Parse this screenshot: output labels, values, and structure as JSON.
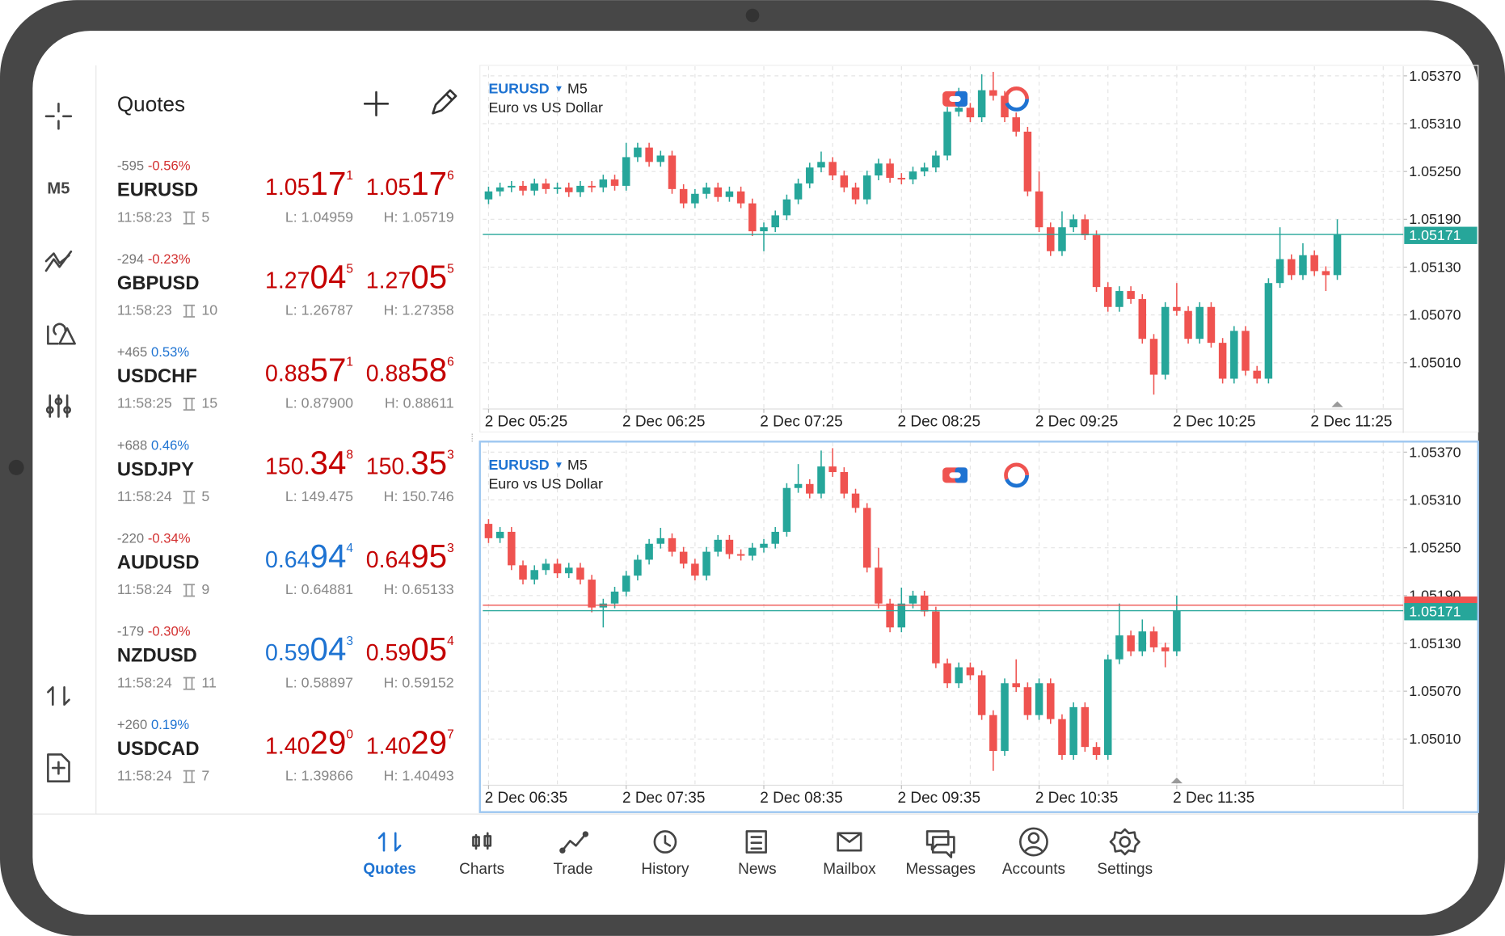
{
  "sidebar": {
    "timeframe": "M5"
  },
  "quotes": {
    "title": "Quotes",
    "items": [
      {
        "change": "-595",
        "pct": "-0.56%",
        "pct_color": "#d32f2f",
        "symbol": "EURUSD",
        "time": "11:58:23",
        "spread": "5",
        "bid": [
          "1.05",
          "17",
          "1"
        ],
        "bid_color": "#c40000",
        "ask": [
          "1.05",
          "17",
          "6"
        ],
        "ask_color": "#c40000",
        "low": "L: 1.04959",
        "high": "H: 1.05719"
      },
      {
        "change": "-294",
        "pct": "-0.23%",
        "pct_color": "#d32f2f",
        "symbol": "GBPUSD",
        "time": "11:58:23",
        "spread": "10",
        "bid": [
          "1.27",
          "04",
          "5"
        ],
        "bid_color": "#c40000",
        "ask": [
          "1.27",
          "05",
          "5"
        ],
        "ask_color": "#c40000",
        "low": "L: 1.26787",
        "high": "H: 1.27358"
      },
      {
        "change": "+465",
        "pct": "0.53%",
        "pct_color": "#1e73d2",
        "symbol": "USDCHF",
        "time": "11:58:25",
        "spread": "15",
        "bid": [
          "0.88",
          "57",
          "1"
        ],
        "bid_color": "#c40000",
        "ask": [
          "0.88",
          "58",
          "6"
        ],
        "ask_color": "#c40000",
        "low": "L: 0.87900",
        "high": "H: 0.88611"
      },
      {
        "change": "+688",
        "pct": "0.46%",
        "pct_color": "#1e73d2",
        "symbol": "USDJPY",
        "time": "11:58:24",
        "spread": "5",
        "bid": [
          "150.",
          "34",
          "8"
        ],
        "bid_color": "#c40000",
        "ask": [
          "150.",
          "35",
          "3"
        ],
        "ask_color": "#c40000",
        "low": "L: 149.475",
        "high": "H: 150.746"
      },
      {
        "change": "-220",
        "pct": "-0.34%",
        "pct_color": "#d32f2f",
        "symbol": "AUDUSD",
        "time": "11:58:24",
        "spread": "9",
        "bid": [
          "0.64",
          "94",
          "4"
        ],
        "bid_color": "#1e73d2",
        "ask": [
          "0.64",
          "95",
          "3"
        ],
        "ask_color": "#c40000",
        "low": "L: 0.64881",
        "high": "H: 0.65133"
      },
      {
        "change": "-179",
        "pct": "-0.30%",
        "pct_color": "#d32f2f",
        "symbol": "NZDUSD",
        "time": "11:58:24",
        "spread": "11",
        "bid": [
          "0.59",
          "04",
          "3"
        ],
        "bid_color": "#1e73d2",
        "ask": [
          "0.59",
          "05",
          "4"
        ],
        "ask_color": "#c40000",
        "low": "L: 0.58897",
        "high": "H: 0.59152"
      },
      {
        "change": "+260",
        "pct": "0.19%",
        "pct_color": "#1e73d2",
        "symbol": "USDCAD",
        "time": "11:58:24",
        "spread": "7",
        "bid": [
          "1.40",
          "29",
          "0"
        ],
        "bid_color": "#c40000",
        "ask": [
          "1.40",
          "29",
          "7"
        ],
        "ask_color": "#c40000",
        "low": "L: 1.39866",
        "high": "H: 1.40493"
      }
    ]
  },
  "chart_data": [
    {
      "type": "candlestick",
      "symbol": "EURUSD",
      "timeframe": "M5",
      "title": "Euro vs US Dollar",
      "x_labels": [
        "2 Dec 05:25",
        "2 Dec 06:25",
        "2 Dec 07:25",
        "2 Dec 08:25",
        "2 Dec 09:25",
        "2 Dec 10:25",
        "2 Dec 11:25"
      ],
      "ylim": [
        1.04952,
        1.05382
      ],
      "yticks": [
        {
          "value": 1.0537,
          "label": "1.05370"
        },
        {
          "value": 1.0531,
          "label": "1.05310"
        },
        {
          "value": 1.0525,
          "label": "1.05250"
        },
        {
          "value": 1.0519,
          "label": "1.05190"
        },
        {
          "value": 1.0513,
          "label": "1.05130"
        },
        {
          "value": 1.0507,
          "label": "1.05070"
        },
        {
          "value": 1.0501,
          "label": "1.05010"
        }
      ],
      "grid": true,
      "up_color": "#26a69a",
      "down_color": "#ef5350",
      "price_line": 1.05171,
      "price_color": "#26a69a",
      "active": false,
      "candles": [
        [
          1.05215,
          1.05231,
          1.05209,
          1.05225
        ],
        [
          1.05225,
          1.05236,
          1.05219,
          1.0523
        ],
        [
          1.0523,
          1.05238,
          1.05224,
          1.05232
        ],
        [
          1.05232,
          1.05238,
          1.0522,
          1.05226
        ],
        [
          1.05226,
          1.05241,
          1.0522,
          1.05235
        ],
        [
          1.05235,
          1.05241,
          1.05222,
          1.05228
        ],
        [
          1.05228,
          1.05236,
          1.05222,
          1.0523
        ],
        [
          1.0523,
          1.05236,
          1.05218,
          1.05224
        ],
        [
          1.05224,
          1.05238,
          1.05218,
          1.05232
        ],
        [
          1.05232,
          1.05238,
          1.05224,
          1.0523
        ],
        [
          1.0523,
          1.05246,
          1.05224,
          1.0524
        ],
        [
          1.0524,
          1.05246,
          1.05226,
          1.05232
        ],
        [
          1.05232,
          1.05286,
          1.05226,
          1.05268
        ],
        [
          1.05268,
          1.05286,
          1.05262,
          1.0528
        ],
        [
          1.0528,
          1.05286,
          1.05256,
          1.05262
        ],
        [
          1.05262,
          1.05276,
          1.05256,
          1.0527
        ],
        [
          1.0527,
          1.05276,
          1.05222,
          1.05228
        ],
        [
          1.05228,
          1.05234,
          1.05204,
          1.0521
        ],
        [
          1.0521,
          1.05228,
          1.05204,
          1.05222
        ],
        [
          1.05222,
          1.05236,
          1.05216,
          1.0523
        ],
        [
          1.0523,
          1.05236,
          1.05212,
          1.05218
        ],
        [
          1.05218,
          1.05231,
          1.05212,
          1.05225
        ],
        [
          1.05225,
          1.05231,
          1.05204,
          1.0521
        ],
        [
          1.0521,
          1.05216,
          1.05169,
          1.05175
        ],
        [
          1.05175,
          1.05186,
          1.0515,
          1.0518
        ],
        [
          1.0518,
          1.05201,
          1.05174,
          1.05195
        ],
        [
          1.05195,
          1.05221,
          1.05189,
          1.05215
        ],
        [
          1.05215,
          1.05241,
          1.05209,
          1.05235
        ],
        [
          1.05235,
          1.05261,
          1.05229,
          1.05255
        ],
        [
          1.05255,
          1.05275,
          1.05249,
          1.05262
        ],
        [
          1.05262,
          1.05268,
          1.05239,
          1.05245
        ],
        [
          1.05245,
          1.05251,
          1.05224,
          1.0523
        ],
        [
          1.0523,
          1.05236,
          1.05209,
          1.05215
        ],
        [
          1.05215,
          1.05251,
          1.05209,
          1.05245
        ],
        [
          1.05245,
          1.05266,
          1.05239,
          1.0526
        ],
        [
          1.0526,
          1.05266,
          1.05236,
          1.05242
        ],
        [
          1.05242,
          1.05248,
          1.05234,
          1.0524
        ],
        [
          1.0524,
          1.05256,
          1.05234,
          1.0525
        ],
        [
          1.0525,
          1.05261,
          1.05244,
          1.05255
        ],
        [
          1.05255,
          1.05276,
          1.05249,
          1.0527
        ],
        [
          1.0527,
          1.05331,
          1.05264,
          1.05325
        ],
        [
          1.05325,
          1.05355,
          1.05319,
          1.0533
        ],
        [
          1.0533,
          1.05336,
          1.05312,
          1.05318
        ],
        [
          1.05318,
          1.05372,
          1.05312,
          1.05352
        ],
        [
          1.05352,
          1.05375,
          1.05339,
          1.05345
        ],
        [
          1.05345,
          1.05351,
          1.05312,
          1.05318
        ],
        [
          1.05318,
          1.05324,
          1.05294,
          1.053
        ],
        [
          1.053,
          1.05306,
          1.05219,
          1.05225
        ],
        [
          1.05225,
          1.0525,
          1.05174,
          1.0518
        ],
        [
          1.0518,
          1.05186,
          1.05144,
          1.0515
        ],
        [
          1.0515,
          1.052,
          1.05144,
          1.0518
        ],
        [
          1.0518,
          1.05196,
          1.05174,
          1.0519
        ],
        [
          1.0519,
          1.05196,
          1.05164,
          1.0517
        ],
        [
          1.0517,
          1.05176,
          1.05099,
          1.05105
        ],
        [
          1.05105,
          1.05111,
          1.05074,
          1.0508
        ],
        [
          1.0508,
          1.05106,
          1.05074,
          1.051
        ],
        [
          1.051,
          1.05106,
          1.05084,
          1.0509
        ],
        [
          1.0509,
          1.05096,
          1.05034,
          1.0504
        ],
        [
          1.0504,
          1.05046,
          1.0497,
          1.04995
        ],
        [
          1.04995,
          1.05086,
          1.04989,
          1.0508
        ],
        [
          1.0508,
          1.0511,
          1.05069,
          1.05075
        ],
        [
          1.05075,
          1.05081,
          1.05034,
          1.0504
        ],
        [
          1.0504,
          1.05086,
          1.05034,
          1.0508
        ],
        [
          1.0508,
          1.05086,
          1.05029,
          1.05035
        ],
        [
          1.05035,
          1.05041,
          1.04984,
          1.0499
        ],
        [
          1.0499,
          1.05056,
          1.04984,
          1.0505
        ],
        [
          1.0505,
          1.05056,
          1.04994,
          1.05
        ],
        [
          1.05,
          1.05006,
          1.04984,
          1.0499
        ],
        [
          1.0499,
          1.05116,
          1.04984,
          1.0511
        ],
        [
          1.0511,
          1.0518,
          1.05104,
          1.0514
        ],
        [
          1.0514,
          1.05146,
          1.05114,
          1.0512
        ],
        [
          1.0512,
          1.0516,
          1.05114,
          1.05145
        ],
        [
          1.05145,
          1.05151,
          1.05119,
          1.05125
        ],
        [
          1.05125,
          1.05131,
          1.051,
          1.0512
        ],
        [
          1.0512,
          1.0519,
          1.05114,
          1.05171
        ]
      ]
    },
    {
      "type": "candlestick",
      "symbol": "EURUSD",
      "timeframe": "M5",
      "title": "Euro vs US Dollar",
      "x_labels": [
        "2 Dec 06:35",
        "2 Dec 07:35",
        "2 Dec 08:35",
        "2 Dec 09:35",
        "2 Dec 10:35",
        "2 Dec 11:35"
      ],
      "ylim": [
        1.04952,
        1.05382
      ],
      "yticks": [
        {
          "value": 1.0537,
          "label": "1.05370"
        },
        {
          "value": 1.0531,
          "label": "1.05310"
        },
        {
          "value": 1.0525,
          "label": "1.05250"
        },
        {
          "value": 1.0519,
          "label": "1.05190"
        },
        {
          "value": 1.0513,
          "label": "1.05130"
        },
        {
          "value": 1.0507,
          "label": "1.05070"
        },
        {
          "value": 1.0501,
          "label": "1.05010"
        }
      ],
      "grid": true,
      "up_color": "#26a69a",
      "down_color": "#ef5350",
      "price_line": 1.05171,
      "price_color": "#26a69a",
      "ask_line": 1.05178,
      "ask_color": "#ef5350",
      "active": true,
      "candles": [
        [
          1.0528,
          1.05286,
          1.05256,
          1.05262
        ],
        [
          1.05262,
          1.05276,
          1.05256,
          1.0527
        ],
        [
          1.0527,
          1.05276,
          1.05222,
          1.05228
        ],
        [
          1.05228,
          1.05234,
          1.05204,
          1.0521
        ],
        [
          1.0521,
          1.05228,
          1.05204,
          1.05222
        ],
        [
          1.05222,
          1.05236,
          1.05216,
          1.0523
        ],
        [
          1.0523,
          1.05236,
          1.05212,
          1.05218
        ],
        [
          1.05218,
          1.05231,
          1.05212,
          1.05225
        ],
        [
          1.05225,
          1.05231,
          1.05204,
          1.0521
        ],
        [
          1.0521,
          1.05216,
          1.05169,
          1.05175
        ],
        [
          1.05175,
          1.05186,
          1.0515,
          1.0518
        ],
        [
          1.0518,
          1.05201,
          1.05174,
          1.05195
        ],
        [
          1.05195,
          1.05221,
          1.05189,
          1.05215
        ],
        [
          1.05215,
          1.05241,
          1.05209,
          1.05235
        ],
        [
          1.05235,
          1.05261,
          1.05229,
          1.05255
        ],
        [
          1.05255,
          1.05275,
          1.05249,
          1.05262
        ],
        [
          1.05262,
          1.05268,
          1.05239,
          1.05245
        ],
        [
          1.05245,
          1.05251,
          1.05224,
          1.0523
        ],
        [
          1.0523,
          1.05236,
          1.05209,
          1.05215
        ],
        [
          1.05215,
          1.05251,
          1.05209,
          1.05245
        ],
        [
          1.05245,
          1.05266,
          1.05239,
          1.0526
        ],
        [
          1.0526,
          1.05266,
          1.05236,
          1.05242
        ],
        [
          1.05242,
          1.05248,
          1.05234,
          1.0524
        ],
        [
          1.0524,
          1.05256,
          1.05234,
          1.0525
        ],
        [
          1.0525,
          1.05261,
          1.05244,
          1.05255
        ],
        [
          1.05255,
          1.05276,
          1.05249,
          1.0527
        ],
        [
          1.0527,
          1.05331,
          1.05264,
          1.05325
        ],
        [
          1.05325,
          1.05355,
          1.05319,
          1.0533
        ],
        [
          1.0533,
          1.05336,
          1.05312,
          1.05318
        ],
        [
          1.05318,
          1.05372,
          1.05312,
          1.05352
        ],
        [
          1.05352,
          1.05375,
          1.05339,
          1.05345
        ],
        [
          1.05345,
          1.05351,
          1.05312,
          1.05318
        ],
        [
          1.05318,
          1.05324,
          1.05294,
          1.053
        ],
        [
          1.053,
          1.05306,
          1.05219,
          1.05225
        ],
        [
          1.05225,
          1.0525,
          1.05174,
          1.0518
        ],
        [
          1.0518,
          1.05186,
          1.05144,
          1.0515
        ],
        [
          1.0515,
          1.052,
          1.05144,
          1.0518
        ],
        [
          1.0518,
          1.05196,
          1.05174,
          1.0519
        ],
        [
          1.0519,
          1.05196,
          1.05164,
          1.0517
        ],
        [
          1.0517,
          1.05176,
          1.05099,
          1.05105
        ],
        [
          1.05105,
          1.05111,
          1.05074,
          1.0508
        ],
        [
          1.0508,
          1.05106,
          1.05074,
          1.051
        ],
        [
          1.051,
          1.05106,
          1.05084,
          1.0509
        ],
        [
          1.0509,
          1.05096,
          1.05034,
          1.0504
        ],
        [
          1.0504,
          1.05046,
          1.0497,
          1.04995
        ],
        [
          1.04995,
          1.05086,
          1.04989,
          1.0508
        ],
        [
          1.0508,
          1.0511,
          1.05069,
          1.05075
        ],
        [
          1.05075,
          1.05081,
          1.05034,
          1.0504
        ],
        [
          1.0504,
          1.05086,
          1.05034,
          1.0508
        ],
        [
          1.0508,
          1.05086,
          1.05029,
          1.05035
        ],
        [
          1.05035,
          1.05041,
          1.04984,
          1.0499
        ],
        [
          1.0499,
          1.05056,
          1.04984,
          1.0505
        ],
        [
          1.0505,
          1.05056,
          1.04994,
          1.05
        ],
        [
          1.05,
          1.05006,
          1.04984,
          1.0499
        ],
        [
          1.0499,
          1.05116,
          1.04984,
          1.0511
        ],
        [
          1.0511,
          1.0518,
          1.05104,
          1.0514
        ],
        [
          1.0514,
          1.05146,
          1.05114,
          1.0512
        ],
        [
          1.0512,
          1.0516,
          1.05114,
          1.05145
        ],
        [
          1.05145,
          1.05151,
          1.05119,
          1.05125
        ],
        [
          1.05125,
          1.05131,
          1.051,
          1.0512
        ],
        [
          1.0512,
          1.0519,
          1.05114,
          1.05171
        ]
      ]
    }
  ],
  "nav": {
    "items": [
      "Quotes",
      "Charts",
      "Trade",
      "History",
      "News",
      "Mailbox",
      "Messages",
      "Accounts",
      "Settings"
    ],
    "active": 0
  }
}
